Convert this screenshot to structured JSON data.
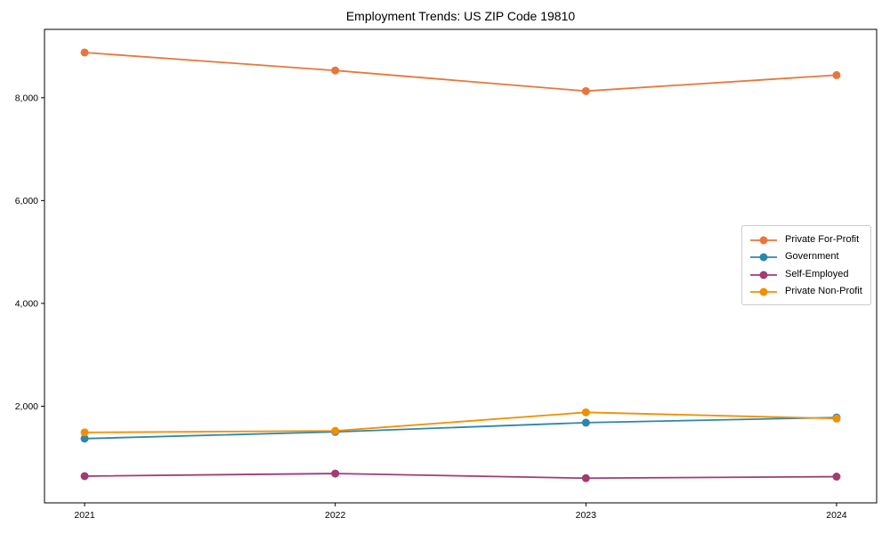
{
  "chart_data": {
    "type": "line",
    "title": "Employment Trends: US ZIP Code 19810",
    "xlabel": "",
    "ylabel": "",
    "x": [
      2021,
      2022,
      2023,
      2024
    ],
    "xtick_labels": [
      "2021",
      "2022",
      "2023",
      "2024"
    ],
    "yticks": [
      2000,
      4000,
      6000,
      8000
    ],
    "ytick_labels": [
      "2,000",
      "4,000",
      "6,000",
      "8,000"
    ],
    "xlim": [
      2020.84,
      2024.16
    ],
    "ylim": [
      120,
      9330
    ],
    "grid": false,
    "legend_position": "center right",
    "axis_color": "#000000",
    "background_color": "#ffffff",
    "series": [
      {
        "name": "Private For-Profit",
        "color": "#E8763B",
        "values": [
          8880,
          8530,
          8130,
          8440
        ]
      },
      {
        "name": "Government",
        "color": "#2E86AB",
        "values": [
          1370,
          1500,
          1680,
          1780
        ]
      },
      {
        "name": "Self-Employed",
        "color": "#A23B72",
        "values": [
          640,
          690,
          600,
          630
        ]
      },
      {
        "name": "Private Non-Profit",
        "color": "#F18F01",
        "values": [
          1490,
          1520,
          1880,
          1760
        ]
      }
    ]
  }
}
